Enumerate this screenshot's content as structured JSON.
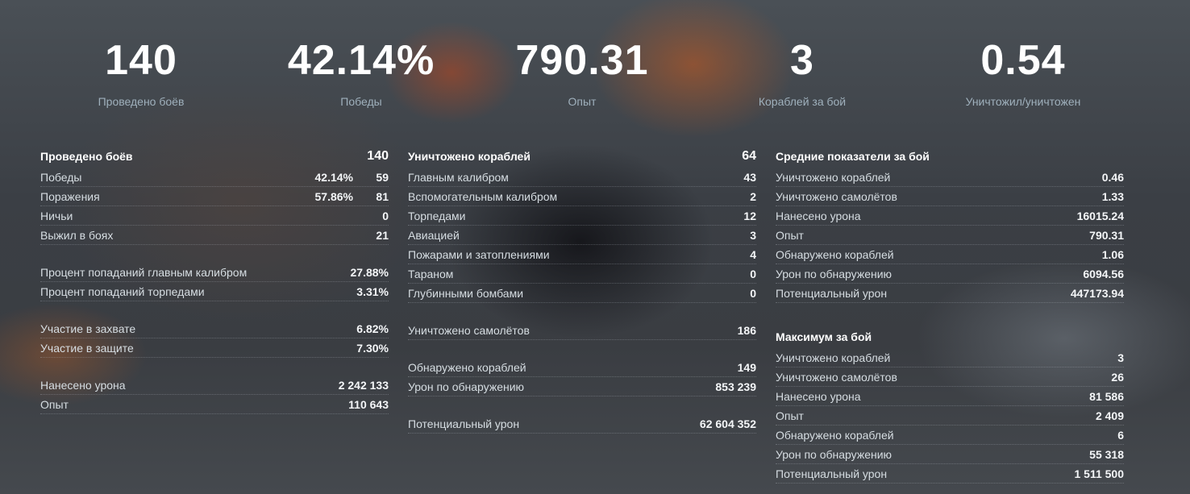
{
  "summary": [
    {
      "value": "140",
      "label": "Проведено боёв"
    },
    {
      "value": "42.14%",
      "label": "Победы"
    },
    {
      "value": "790.31",
      "label": "Опыт"
    },
    {
      "value": "3",
      "label": "Кораблей за бой"
    },
    {
      "value": "0.54",
      "label": "Уничтожил/уничтожен"
    }
  ],
  "battles": {
    "title": "Проведено боёв",
    "total": "140",
    "wins": {
      "label": "Победы",
      "pct": "42.14%",
      "count": "59"
    },
    "losses": {
      "label": "Поражения",
      "pct": "57.86%",
      "count": "81"
    },
    "draws": {
      "label": "Ничьи",
      "count": "0"
    },
    "survived": {
      "label": "Выжил в боях",
      "count": "21"
    },
    "hit_main": {
      "label": "Процент попаданий главным калибром",
      "value": "27.88%"
    },
    "hit_torp": {
      "label": "Процент попаданий торпедами",
      "value": "3.31%"
    },
    "capture": {
      "label": "Участие в захвате",
      "value": "6.82%"
    },
    "defense": {
      "label": "Участие в защите",
      "value": "7.30%"
    },
    "damage": {
      "label": "Нанесено урона",
      "value": "2 242 133"
    },
    "xp": {
      "label": "Опыт",
      "value": "110 643"
    }
  },
  "kills": {
    "title": "Уничтожено кораблей",
    "total": "64",
    "rows": [
      {
        "label": "Главным калибром",
        "value": "43"
      },
      {
        "label": "Вспомогательным калибром",
        "value": "2"
      },
      {
        "label": "Торпедами",
        "value": "12"
      },
      {
        "label": "Авиацией",
        "value": "3"
      },
      {
        "label": "Пожарами и затоплениями",
        "value": "4"
      },
      {
        "label": "Тараном",
        "value": "0"
      },
      {
        "label": "Глубинными бомбами",
        "value": "0"
      }
    ],
    "planes": {
      "label": "Уничтожено самолётов",
      "value": "186"
    },
    "spotted": {
      "label": "Обнаружено кораблей",
      "value": "149"
    },
    "spot_damage": {
      "label": "Урон по обнаружению",
      "value": "853 239"
    },
    "potential": {
      "label": "Потенциальный урон",
      "value": "62 604 352"
    }
  },
  "average": {
    "title": "Средние показатели за бой",
    "rows": [
      {
        "label": "Уничтожено кораблей",
        "value": "0.46"
      },
      {
        "label": "Уничтожено самолётов",
        "value": "1.33"
      },
      {
        "label": "Нанесено урона",
        "value": "16015.24"
      },
      {
        "label": "Опыт",
        "value": "790.31"
      },
      {
        "label": "Обнаружено кораблей",
        "value": "1.06"
      },
      {
        "label": "Урон по обнаружению",
        "value": "6094.56"
      },
      {
        "label": "Потенциальный урон",
        "value": "447173.94"
      }
    ]
  },
  "maximum": {
    "title": "Максимум за бой",
    "rows": [
      {
        "label": "Уничтожено кораблей",
        "value": "3"
      },
      {
        "label": "Уничтожено самолётов",
        "value": "26"
      },
      {
        "label": "Нанесено урона",
        "value": "81 586"
      },
      {
        "label": "Опыт",
        "value": "2 409"
      },
      {
        "label": "Обнаружено кораблей",
        "value": "6"
      },
      {
        "label": "Урон по обнаружению",
        "value": "55 318"
      },
      {
        "label": "Потенциальный урон",
        "value": "1 511 500"
      }
    ]
  }
}
